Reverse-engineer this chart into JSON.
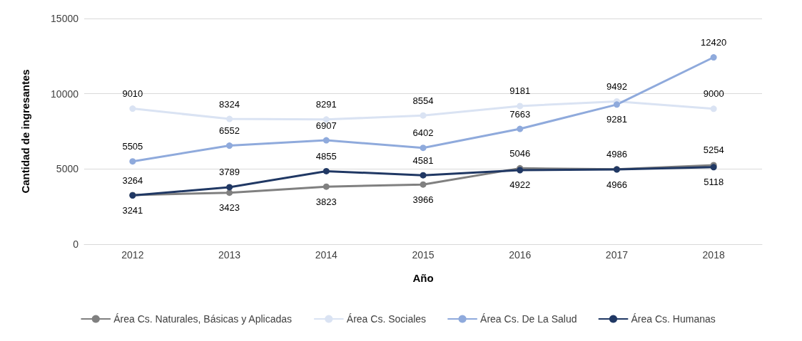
{
  "chart_data": {
    "type": "line",
    "xlabel": "Año",
    "ylabel": "Cantidad de ingresantes",
    "categories": [
      "2012",
      "2013",
      "2014",
      "2015",
      "2016",
      "2017",
      "2018"
    ],
    "series": [
      {
        "name": "Área Cs. Naturales, Básicas y Aplicadas",
        "color": "#808080",
        "values": [
          3264,
          3423,
          3823,
          3966,
          5046,
          4986,
          5254
        ]
      },
      {
        "name": "Área Cs. Sociales",
        "color": "#dae3f3",
        "values": [
          9010,
          8324,
          8291,
          8554,
          9181,
          9492,
          9000
        ]
      },
      {
        "name": "Área Cs. De La Salud",
        "color": "#8faadc",
        "values": [
          5505,
          6552,
          6907,
          6402,
          7663,
          9281,
          12420
        ]
      },
      {
        "name": "Área Cs. Humanas",
        "color": "#203864",
        "values": [
          3241,
          3789,
          4855,
          4581,
          4922,
          4966,
          5118
        ]
      }
    ],
    "ylim": [
      0,
      15000
    ],
    "yticks": [
      0,
      5000,
      10000,
      15000
    ],
    "grid": "y",
    "legend": "bottom",
    "marker": "circle",
    "line_style": "solid",
    "data_labels": true
  }
}
